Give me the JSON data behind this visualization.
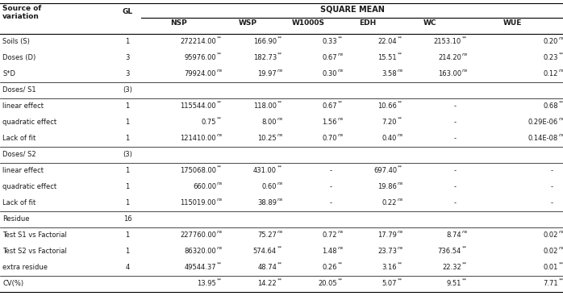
{
  "rows": [
    {
      "label": "Soils (S)",
      "gl": "1",
      "nsp": "272214.00",
      "nsp_sig": "**",
      "wsp": "166.90",
      "wsp_sig": "**",
      "w1000s": "0.33",
      "w1000s_sig": "**",
      "edh": "22.04",
      "edh_sig": "**",
      "wc": "2153.10",
      "wc_sig": "**",
      "wue": "0.20",
      "wue_sig": "ns"
    },
    {
      "label": "Doses (D)",
      "gl": "3",
      "nsp": "95976.00",
      "nsp_sig": "**",
      "wsp": "182.73",
      "wsp_sig": "**",
      "w1000s": "0.67",
      "w1000s_sig": "ns",
      "edh": "15.51",
      "edh_sig": "**",
      "wc": "214.20",
      "wc_sig": "ns",
      "wue": "0.23",
      "wue_sig": "**"
    },
    {
      "label": "S*D",
      "gl": "3",
      "nsp": "79924.00",
      "nsp_sig": "ns",
      "wsp": "19.97",
      "wsp_sig": "ns",
      "w1000s": "0.30",
      "w1000s_sig": "ns",
      "edh": "3.58",
      "edh_sig": "ns",
      "wc": "163.00",
      "wc_sig": "ns",
      "wue": "0.12",
      "wue_sig": "ns"
    },
    {
      "label": "Doses/ S1",
      "gl": "(3)",
      "nsp": "",
      "nsp_sig": "",
      "wsp": "",
      "wsp_sig": "",
      "w1000s": "",
      "w1000s_sig": "",
      "edh": "",
      "edh_sig": "",
      "wc": "",
      "wc_sig": "",
      "wue": "",
      "wue_sig": ""
    },
    {
      "label": "linear effect",
      "gl": "1",
      "nsp": "115544.00",
      "nsp_sig": "**",
      "wsp": "118.00",
      "wsp_sig": "**",
      "w1000s": "0.67",
      "w1000s_sig": "**",
      "edh": "10.66",
      "edh_sig": "**",
      "wc": "-",
      "wc_sig": "",
      "wue": "0.68",
      "wue_sig": "**"
    },
    {
      "label": "quadratic effect",
      "gl": "1",
      "nsp": "0.75",
      "nsp_sig": "**",
      "wsp": "8.00",
      "wsp_sig": "ns",
      "w1000s": "1.56",
      "w1000s_sig": "ns",
      "edh": "7.20",
      "edh_sig": "**",
      "wc": "-",
      "wc_sig": "",
      "wue": "0.29E-06",
      "wue_sig": "ns"
    },
    {
      "label": "Lack of fit",
      "gl": "1",
      "nsp": "121410.00",
      "nsp_sig": "ns",
      "wsp": "10.25",
      "wsp_sig": "ns",
      "w1000s": "0.70",
      "w1000s_sig": "ns",
      "edh": "0.40",
      "edh_sig": "ns",
      "wc": "-",
      "wc_sig": "",
      "wue": "0.14E-08",
      "wue_sig": "ns"
    },
    {
      "label": "Doses/ S2",
      "gl": "(3)",
      "nsp": "",
      "nsp_sig": "",
      "wsp": "",
      "wsp_sig": "",
      "w1000s": "",
      "w1000s_sig": "",
      "edh": "",
      "edh_sig": "",
      "wc": "",
      "wc_sig": "",
      "wue": "",
      "wue_sig": ""
    },
    {
      "label": "linear effect",
      "gl": "1",
      "nsp": "175068.00",
      "nsp_sig": "**",
      "wsp": "431.00",
      "wsp_sig": "**",
      "w1000s": "-",
      "w1000s_sig": "",
      "edh": "697.40",
      "edh_sig": "**",
      "wc": "-",
      "wc_sig": "",
      "wue": "-",
      "wue_sig": ""
    },
    {
      "label": "quadratic effect",
      "gl": "1",
      "nsp": "660.00",
      "nsp_sig": "ns",
      "wsp": "0.60",
      "wsp_sig": "ns",
      "w1000s": "-",
      "w1000s_sig": "",
      "edh": "19.86",
      "edh_sig": "ns",
      "wc": "-",
      "wc_sig": "",
      "wue": "-",
      "wue_sig": ""
    },
    {
      "label": "Lack of fit",
      "gl": "1",
      "nsp": "115019.00",
      "nsp_sig": "ns",
      "wsp": "38.89",
      "wsp_sig": "ns",
      "w1000s": "-",
      "w1000s_sig": "",
      "edh": "0.22",
      "edh_sig": "ns",
      "wc": "-",
      "wc_sig": "",
      "wue": "-",
      "wue_sig": ""
    },
    {
      "label": "Residue",
      "gl": "16",
      "nsp": "",
      "nsp_sig": "",
      "wsp": "",
      "wsp_sig": "",
      "w1000s": "",
      "w1000s_sig": "",
      "edh": "",
      "edh_sig": "",
      "wc": "",
      "wc_sig": "",
      "wue": "",
      "wue_sig": ""
    },
    {
      "label": "Test S1 vs Factorial",
      "gl": "1",
      "nsp": "227760.00",
      "nsp_sig": "ns",
      "wsp": "75.27",
      "wsp_sig": "ns",
      "w1000s": "0.72",
      "w1000s_sig": "ns",
      "edh": "17.79",
      "edh_sig": "ns",
      "wc": "8.74",
      "wc_sig": "ns",
      "wue": "0.02",
      "wue_sig": "ns"
    },
    {
      "label": "Test S2 vs Factorial",
      "gl": "1",
      "nsp": "86320.00",
      "nsp_sig": "ns",
      "wsp": "574.64",
      "wsp_sig": "**",
      "w1000s": "1.48",
      "w1000s_sig": "ns",
      "edh": "23.73",
      "edh_sig": "ns",
      "wc": "736.54",
      "wc_sig": "**",
      "wue": "0.02",
      "wue_sig": "ns"
    },
    {
      "label": "extra residue",
      "gl": "4",
      "nsp": "49544.37",
      "nsp_sig": "**",
      "wsp": "48.74",
      "wsp_sig": "**",
      "w1000s": "0.26",
      "w1000s_sig": "**",
      "edh": "3.16",
      "edh_sig": "**",
      "wc": "22.32",
      "wc_sig": "**",
      "wue": "0.01",
      "wue_sig": "**"
    },
    {
      "label": "CV(%)",
      "gl": "",
      "nsp": "13.95",
      "nsp_sig": "**",
      "wsp": "14.22",
      "wsp_sig": "**",
      "w1000s": "20.05",
      "w1000s_sig": "**",
      "edh": "5.07",
      "edh_sig": "**",
      "wc": "9.51",
      "wc_sig": "**",
      "wue": "7.71",
      "wue_sig": "**"
    }
  ],
  "separator_after": [
    2,
    3,
    6,
    7,
    10,
    11,
    14
  ],
  "col_headers": [
    "NSP",
    "WSP",
    "W1000S",
    "EDH",
    "WC",
    "WUE"
  ],
  "bg_color": "#ffffff",
  "text_color": "#1a1a1a",
  "fs": 6.0,
  "fs_header": 6.5,
  "fs_sig": 4.5
}
